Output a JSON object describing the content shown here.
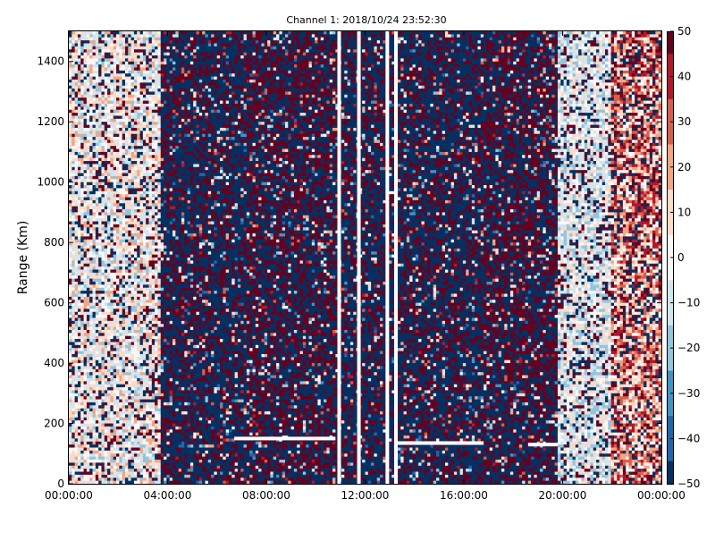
{
  "chart_data": {
    "type": "heatmap",
    "title": "Channel 1: 2018/10/24 23:52:30",
    "ylabel": "Range (Km)",
    "xlabel": "",
    "x_ticks": [
      "00:00:00",
      "04:00:00",
      "08:00:00",
      "12:00:00",
      "16:00:00",
      "20:00:00",
      "00:00:00"
    ],
    "x_range_hours": [
      0,
      24
    ],
    "y_ticks": [
      0,
      200,
      400,
      600,
      800,
      1000,
      1200,
      1400
    ],
    "ylim": [
      0,
      1500
    ],
    "colorbar": {
      "ticks": [
        50,
        40,
        30,
        20,
        10,
        0,
        -10,
        -20,
        -30,
        -40,
        -50
      ],
      "vmin": -50,
      "vmax": 50,
      "colormap": "RdBu_r",
      "colors": [
        "#053061",
        "#2166ac",
        "#4393c3",
        "#92c5de",
        "#d1e5f0",
        "#f7f7f7",
        "#fddbc7",
        "#f4a582",
        "#d6604d",
        "#b2182b",
        "#67001f"
      ]
    },
    "grid": false,
    "regions": [
      {
        "hours": [
          0,
          3.7
        ],
        "pattern": "mixed-light",
        "mean": 0
      },
      {
        "hours": [
          3.7,
          7.2
        ],
        "pattern": "noisy",
        "mean": -10
      },
      {
        "hours": [
          7.2,
          10.9
        ],
        "pattern": "noisy-red",
        "mean": 0
      },
      {
        "hours": [
          10.9,
          13.3
        ],
        "pattern": "noisy",
        "mean": 0
      },
      {
        "hours": [
          13.3,
          16.8
        ],
        "pattern": "noisy",
        "mean": -10
      },
      {
        "hours": [
          16.8,
          19.8
        ],
        "pattern": "noisy-red",
        "mean": 5
      },
      {
        "hours": [
          19.8,
          22
        ],
        "pattern": "mixed-light",
        "mean": -5
      },
      {
        "hours": [
          22,
          24
        ],
        "pattern": "mixed-warm",
        "mean": 10
      }
    ],
    "gap_columns_hours": [
      10.95,
      11.75,
      12.9,
      13.25
    ],
    "gap_segments": [
      {
        "hours": [
          6.7,
          10.8
        ],
        "range_km": 150
      },
      {
        "hours": [
          13.3,
          16.8
        ],
        "range_km": 135
      },
      {
        "hours": [
          18.6,
          19.8
        ],
        "range_km": 130
      }
    ]
  }
}
